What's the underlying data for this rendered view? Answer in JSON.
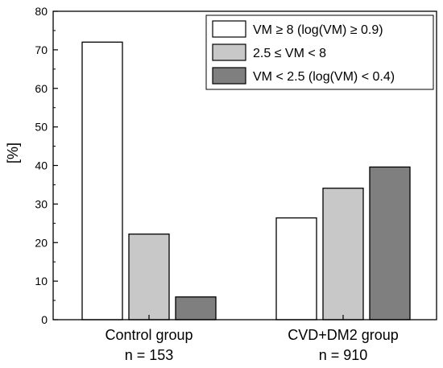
{
  "chart_data": {
    "type": "bar",
    "title": "",
    "xlabel": "",
    "ylabel": "[%]",
    "ylim": [
      0,
      80
    ],
    "yticks": [
      0,
      10,
      20,
      30,
      40,
      50,
      60,
      70,
      80
    ],
    "grid": false,
    "legend_position": "top-right",
    "categories": [
      {
        "line1": "Control group",
        "line2": "n = 153"
      },
      {
        "line1": "CVD+DM2 group",
        "line2": "n = 910"
      }
    ],
    "series": [
      {
        "name": "VM ≥ 8 (log(VM) ≥ 0.9)",
        "color": "#ffffff",
        "values": [
          72,
          26.4
        ]
      },
      {
        "name": "2.5 ≤ VM < 8",
        "color": "#c8c8c8",
        "values": [
          22.2,
          34.1
        ]
      },
      {
        "name": "VM < 2.5 (log(VM) < 0.4)",
        "color": "#7f7f7f",
        "values": [
          5.9,
          39.6
        ]
      }
    ]
  }
}
